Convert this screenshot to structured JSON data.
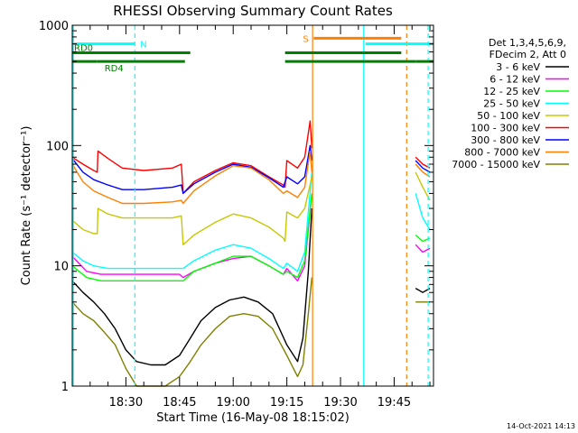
{
  "chart_data": {
    "type": "line",
    "title": "RHESSI Observing Summary Count Rates",
    "xlabel": "Start Time (16-May-08 18:15:02)",
    "ylabel": "Count Rate (s⁻¹ detector⁻¹)",
    "x_unit": "minutes after 18:15:02 UT",
    "xlim": [
      0,
      101
    ],
    "ylim": [
      1,
      1000
    ],
    "yscale": "log",
    "grid": false,
    "legend_position": "right",
    "xticks": [
      {
        "value": 15,
        "label": "18:30"
      },
      {
        "value": 30,
        "label": "18:45"
      },
      {
        "value": 45,
        "label": "19:00"
      },
      {
        "value": 60,
        "label": "19:15"
      },
      {
        "value": 75,
        "label": "19:30"
      },
      {
        "value": 90,
        "label": "19:45"
      }
    ],
    "yticks": [
      {
        "value": 1,
        "label": "1"
      },
      {
        "value": 10,
        "label": "10"
      },
      {
        "value": 100,
        "label": "100"
      },
      {
        "value": 1000,
        "label": "1000"
      }
    ],
    "legend_header": [
      "Det 1,3,4,5,6,9,",
      "FDecim 2, Att 0"
    ],
    "timestamp": "14-Oct-2021 14:13",
    "flags": [
      {
        "label": "N",
        "color": "#00ffff",
        "y": 700,
        "segments": [
          [
            0,
            17.5
          ],
          [
            82,
            101
          ]
        ]
      },
      {
        "label": "S",
        "color": "#ff8000",
        "y": 780,
        "segments": [
          [
            67.5,
            92
          ]
        ]
      },
      {
        "label": "RD0",
        "color": "#008000",
        "y": 590,
        "segments": [
          [
            0,
            33
          ],
          [
            59.5,
            92
          ]
        ]
      },
      {
        "label": "RD4",
        "color": "#008000",
        "y": 500,
        "segments": [
          [
            0,
            7
          ],
          [
            7,
            31.5
          ],
          [
            59.5,
            96
          ],
          [
            96,
            101
          ]
        ]
      }
    ],
    "vlines": [
      {
        "x": 0.3,
        "color": "#00ffff",
        "style": "solid"
      },
      {
        "x": 17.5,
        "color": "#00ffff",
        "style": "dashed"
      },
      {
        "x": 67.2,
        "color": "#ff8000",
        "style": "solid"
      },
      {
        "x": 81.5,
        "color": "#00ffff",
        "style": "solid"
      },
      {
        "x": 93.5,
        "color": "#ff8000",
        "style": "dashed"
      },
      {
        "x": 99.5,
        "color": "#00ffff",
        "style": "dashed"
      }
    ],
    "series": [
      {
        "name": "3 - 6 keV",
        "color": "#000000",
        "segments": [
          [
            [
              0,
              7.5
            ],
            [
              3,
              6
            ],
            [
              6,
              5
            ],
            [
              9,
              4
            ],
            [
              12,
              3
            ],
            [
              15,
              2
            ],
            [
              18,
              1.6
            ],
            [
              22,
              1.5
            ],
            [
              26,
              1.5
            ],
            [
              30,
              1.8
            ],
            [
              33,
              2.5
            ],
            [
              36,
              3.5
            ],
            [
              40,
              4.5
            ],
            [
              44,
              5.2
            ],
            [
              48,
              5.5
            ],
            [
              52,
              5
            ],
            [
              56,
              4
            ],
            [
              60,
              2.2
            ],
            [
              63,
              1.6
            ],
            [
              64.5,
              2.5
            ],
            [
              66,
              9
            ],
            [
              67,
              30
            ]
          ],
          [
            [
              96,
              6.5
            ],
            [
              98,
              6
            ],
            [
              100,
              6.5
            ]
          ]
        ]
      },
      {
        "name": "6 - 12 keV",
        "color": "#ff00ff",
        "segments": [
          [
            [
              0,
              12
            ],
            [
              4,
              9
            ],
            [
              8,
              8.5
            ],
            [
              16,
              8.5
            ],
            [
              24,
              8.5
            ],
            [
              30,
              8.5
            ],
            [
              31,
              8
            ],
            [
              34,
              9
            ],
            [
              40,
              10.5
            ],
            [
              45,
              11.5
            ],
            [
              50,
              12
            ],
            [
              55,
              10
            ],
            [
              59,
              8.5
            ],
            [
              60,
              9.5
            ],
            [
              63,
              7.5
            ],
            [
              65,
              10
            ],
            [
              67,
              40
            ]
          ],
          [
            [
              96,
              15
            ],
            [
              98,
              13
            ],
            [
              100,
              14
            ]
          ]
        ]
      },
      {
        "name": "12 - 25 keV",
        "color": "#00ff00",
        "segments": [
          [
            [
              0,
              10
            ],
            [
              4,
              8
            ],
            [
              8,
              7.5
            ],
            [
              16,
              7.5
            ],
            [
              24,
              7.5
            ],
            [
              30,
              7.5
            ],
            [
              31,
              7.5
            ],
            [
              34,
              9
            ],
            [
              40,
              10.5
            ],
            [
              45,
              12
            ],
            [
              50,
              12
            ],
            [
              55,
              10
            ],
            [
              59,
              8.5
            ],
            [
              60,
              9
            ],
            [
              63,
              8
            ],
            [
              65,
              11
            ],
            [
              67,
              40
            ]
          ],
          [
            [
              96,
              18
            ],
            [
              98,
              16
            ],
            [
              100,
              17
            ]
          ]
        ]
      },
      {
        "name": "25 - 50 keV",
        "color": "#00ffff",
        "segments": [
          [
            [
              0,
              13
            ],
            [
              3,
              11
            ],
            [
              6,
              10
            ],
            [
              10,
              9.5
            ],
            [
              16,
              9.5
            ],
            [
              24,
              9.5
            ],
            [
              30,
              9.5
            ],
            [
              31,
              9.5
            ],
            [
              34,
              11
            ],
            [
              40,
              13.5
            ],
            [
              45,
              15
            ],
            [
              50,
              14
            ],
            [
              55,
              11.5
            ],
            [
              59,
              9.5
            ],
            [
              60,
              10.5
            ],
            [
              63,
              9
            ],
            [
              65,
              13
            ],
            [
              67,
              60
            ]
          ],
          [
            [
              96,
              40
            ],
            [
              98,
              25
            ],
            [
              100,
              20
            ]
          ]
        ]
      },
      {
        "name": "50 - 100 keV",
        "color": "#c8c800",
        "segments": [
          [
            [
              0,
              24
            ],
            [
              3,
              20
            ],
            [
              6,
              18.5
            ],
            [
              7,
              18.5
            ],
            [
              7.2,
              30
            ],
            [
              10,
              27
            ],
            [
              14,
              25
            ],
            [
              20,
              25
            ],
            [
              28,
              25
            ],
            [
              30.5,
              26
            ],
            [
              31,
              15
            ],
            [
              34,
              18
            ],
            [
              40,
              23
            ],
            [
              45,
              27
            ],
            [
              50,
              25
            ],
            [
              55,
              21
            ],
            [
              59,
              17
            ],
            [
              59.5,
              16
            ],
            [
              60,
              28
            ],
            [
              63,
              25
            ],
            [
              65,
              30
            ],
            [
              67,
              55
            ]
          ],
          [
            [
              96,
              60
            ],
            [
              98,
              45
            ],
            [
              100,
              35
            ]
          ]
        ]
      },
      {
        "name": "100 - 300 keV",
        "color": "#ff0000",
        "segments": [
          [
            [
              0,
              80
            ],
            [
              3,
              70
            ],
            [
              6,
              62
            ],
            [
              7,
              60
            ],
            [
              7.2,
              90
            ],
            [
              10,
              78
            ],
            [
              14,
              65
            ],
            [
              20,
              62
            ],
            [
              28,
              65
            ],
            [
              30.5,
              70
            ],
            [
              31,
              40
            ],
            [
              34,
              50
            ],
            [
              40,
              62
            ],
            [
              45,
              72
            ],
            [
              50,
              68
            ],
            [
              55,
              55
            ],
            [
              59,
              47
            ],
            [
              59.5,
              45
            ],
            [
              60,
              75
            ],
            [
              63,
              65
            ],
            [
              65,
              80
            ],
            [
              66.5,
              160
            ],
            [
              67,
              95
            ]
          ],
          [
            [
              96,
              80
            ],
            [
              98,
              70
            ],
            [
              100,
              65
            ]
          ]
        ]
      },
      {
        "name": "300 - 800 keV",
        "color": "#0000ff",
        "segments": [
          [
            [
              0,
              78
            ],
            [
              3,
              60
            ],
            [
              6,
              52
            ],
            [
              10,
              47
            ],
            [
              14,
              43
            ],
            [
              20,
              43
            ],
            [
              28,
              45
            ],
            [
              30.5,
              47
            ],
            [
              31,
              40
            ],
            [
              34,
              48
            ],
            [
              40,
              60
            ],
            [
              45,
              70
            ],
            [
              50,
              66
            ],
            [
              55,
              54
            ],
            [
              59,
              45
            ],
            [
              60,
              55
            ],
            [
              63,
              48
            ],
            [
              65,
              55
            ],
            [
              66.5,
              100
            ],
            [
              67,
              75
            ]
          ],
          [
            [
              96,
              75
            ],
            [
              98,
              65
            ],
            [
              100,
              60
            ]
          ]
        ]
      },
      {
        "name": "800 - 7000 keV",
        "color": "#ff8000",
        "segments": [
          [
            [
              0,
              70
            ],
            [
              3,
              50
            ],
            [
              6,
              42
            ],
            [
              10,
              37
            ],
            [
              14,
              33
            ],
            [
              20,
              33
            ],
            [
              28,
              34
            ],
            [
              30.5,
              35
            ],
            [
              31,
              33
            ],
            [
              34,
              42
            ],
            [
              40,
              56
            ],
            [
              45,
              68
            ],
            [
              50,
              65
            ],
            [
              55,
              52
            ],
            [
              59,
              40
            ],
            [
              60,
              42
            ],
            [
              63,
              37
            ],
            [
              65,
              45
            ],
            [
              66.5,
              90
            ],
            [
              67,
              60
            ]
          ],
          [
            [
              96,
              70
            ],
            [
              98,
              60
            ],
            [
              100,
              55
            ]
          ]
        ]
      },
      {
        "name": "7000 - 15000 keV",
        "color": "#808000",
        "segments": [
          [
            [
              0,
              5
            ],
            [
              3,
              4
            ],
            [
              6,
              3.5
            ],
            [
              9,
              2.8
            ],
            [
              12,
              2.2
            ],
            [
              15,
              1.4
            ],
            [
              18,
              1
            ],
            [
              22,
              1
            ],
            [
              26,
              1
            ],
            [
              30,
              1.2
            ],
            [
              33,
              1.6
            ],
            [
              36,
              2.2
            ],
            [
              40,
              3
            ],
            [
              44,
              3.8
            ],
            [
              48,
              4
            ],
            [
              52,
              3.8
            ],
            [
              56,
              3
            ],
            [
              60,
              1.8
            ],
            [
              63,
              1.2
            ],
            [
              64.5,
              1.5
            ],
            [
              66,
              4
            ],
            [
              67,
              8
            ]
          ],
          [
            [
              96,
              5
            ],
            [
              98,
              5
            ],
            [
              100,
              5
            ]
          ]
        ]
      }
    ]
  }
}
